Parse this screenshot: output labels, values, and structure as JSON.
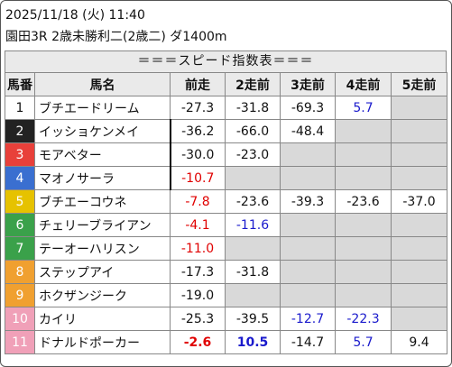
{
  "header": {
    "datetime": "2025/11/18 (火) 11:40",
    "race": "園田3R 2歳未勝利二(2歳二) ダ1400m"
  },
  "table_title": "＝＝＝スピード指数表＝＝＝",
  "columns": [
    "馬番",
    "馬名",
    "前走",
    "2走前",
    "3走前",
    "4走前",
    "5走前"
  ],
  "colors": {
    "1": "#ffffff",
    "2": "#222222",
    "3": "#e8403a",
    "4": "#3a6fd0",
    "5": "#e6c200",
    "6": "#3aa14a",
    "7": "#3aa14a",
    "8": "#f0a030",
    "9": "#f0a030",
    "10": "#f0a0b8",
    "11": "#f0a0b8",
    "red_value": "#e00000",
    "blue_value": "#1a1acc"
  },
  "rows": [
    {
      "num": "1",
      "name": "ブチエードリーム",
      "v": [
        "-27.3",
        "-31.8",
        "-69.3",
        "5.7",
        ""
      ],
      "cls": [
        "",
        "",
        "",
        "blue",
        "empty"
      ]
    },
    {
      "num": "2",
      "name": "イッショケンメイ",
      "v": [
        "-36.2",
        "-66.0",
        "-48.4",
        "",
        ""
      ],
      "cls": [
        "",
        "",
        "",
        "empty",
        "empty"
      ]
    },
    {
      "num": "3",
      "name": "モアベター",
      "v": [
        "-30.0",
        "-23.0",
        "",
        "",
        ""
      ],
      "cls": [
        "",
        "",
        "empty",
        "empty",
        "empty"
      ]
    },
    {
      "num": "4",
      "name": "マオノサーラ",
      "v": [
        "-10.7",
        "",
        "",
        "",
        ""
      ],
      "cls": [
        "red",
        "empty",
        "empty",
        "empty",
        "empty"
      ]
    },
    {
      "num": "5",
      "name": "ブチエーコウネ",
      "v": [
        "-7.8",
        "-23.6",
        "-39.3",
        "-23.6",
        "-37.0"
      ],
      "cls": [
        "red",
        "",
        "",
        "",
        ""
      ]
    },
    {
      "num": "6",
      "name": "チェリーブライアン",
      "v": [
        "-4.1",
        "-11.6",
        "",
        "",
        ""
      ],
      "cls": [
        "red",
        "blue",
        "empty",
        "empty",
        "empty"
      ]
    },
    {
      "num": "7",
      "name": "テーオーハリスン",
      "v": [
        "-11.0",
        "",
        "",
        "",
        ""
      ],
      "cls": [
        "red",
        "empty",
        "empty",
        "empty",
        "empty"
      ]
    },
    {
      "num": "8",
      "name": "ステップアイ",
      "v": [
        "-17.3",
        "-31.8",
        "",
        "",
        ""
      ],
      "cls": [
        "",
        "",
        "empty",
        "empty",
        "empty"
      ]
    },
    {
      "num": "9",
      "name": "ホクザンジーク",
      "v": [
        "-19.0",
        "",
        "",
        "",
        ""
      ],
      "cls": [
        "",
        "empty",
        "empty",
        "empty",
        "empty"
      ]
    },
    {
      "num": "10",
      "name": "カイリ",
      "v": [
        "-25.3",
        "-39.5",
        "-12.7",
        "-22.3",
        ""
      ],
      "cls": [
        "",
        "",
        "blue",
        "blue",
        "empty"
      ]
    },
    {
      "num": "11",
      "name": "ドナルドポーカー",
      "v": [
        "-2.6",
        "10.5",
        "-14.7",
        "5.7",
        "9.4"
      ],
      "cls": [
        "red bold",
        "blue bold",
        "",
        "blue",
        ""
      ]
    }
  ]
}
